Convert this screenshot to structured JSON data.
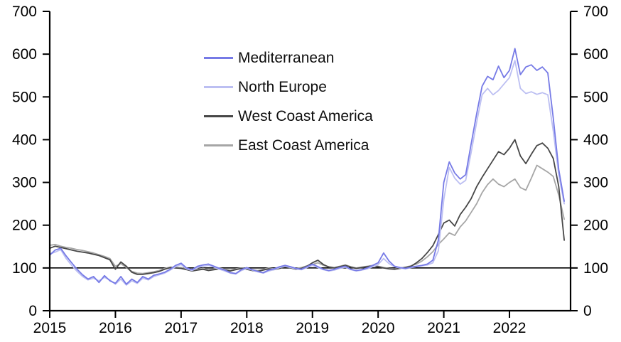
{
  "chart_data": {
    "type": "line",
    "title": "",
    "xlabel": "",
    "ylabel": "",
    "x_axis": {
      "tick_years": [
        2015,
        2016,
        2017,
        2018,
        2019,
        2020,
        2021,
        2022
      ],
      "min": 2015,
      "max": 2022.93
    },
    "y_axis_left": {
      "ticks": [
        0,
        100,
        200,
        300,
        400,
        500,
        600,
        700
      ],
      "min": 0,
      "max": 700
    },
    "y_axis_right": {
      "ticks": [
        0,
        100,
        200,
        300,
        400,
        500,
        600,
        700
      ],
      "min": 0,
      "max": 700
    },
    "reference_line_value": 100,
    "grid": false,
    "legend_position": "upper-left-inside",
    "axis_color": "#000000",
    "x_start_year": 2015,
    "x_step_years": 0.0833333,
    "series": [
      {
        "name": "Mediterranean",
        "color": "#767ae6",
        "values": [
          130,
          142,
          146,
          128,
          112,
          97,
          84,
          74,
          80,
          66,
          82,
          70,
          64,
          80,
          62,
          74,
          66,
          80,
          74,
          83,
          86,
          90,
          97,
          106,
          111,
          100,
          96,
          104,
          107,
          109,
          104,
          99,
          95,
          89,
          87,
          96,
          101,
          96,
          92,
          89,
          95,
          98,
          103,
          106,
          103,
          99,
          97,
          103,
          109,
          103,
          97,
          94,
          97,
          101,
          104,
          97,
          94,
          96,
          100,
          106,
          112,
          135,
          116,
          104,
          101,
          99,
          102,
          104,
          106,
          109,
          118,
          165,
          300,
          348,
          322,
          308,
          318,
          390,
          460,
          525,
          548,
          540,
          572,
          545,
          562,
          613,
          552,
          570,
          575,
          562,
          570,
          556,
          450,
          330,
          256
        ]
      },
      {
        "name": "North Europe",
        "color": "#bcbff2",
        "values": [
          133,
          137,
          143,
          122,
          106,
          92,
          80,
          72,
          76,
          70,
          78,
          72,
          62,
          74,
          60,
          70,
          64,
          76,
          72,
          80,
          84,
          88,
          95,
          103,
          108,
          98,
          94,
          101,
          104,
          106,
          102,
          97,
          93,
          88,
          86,
          94,
          99,
          95,
          91,
          88,
          93,
          96,
          101,
          104,
          101,
          98,
          96,
          101,
          106,
          101,
          96,
          93,
          95,
          99,
          102,
          96,
          93,
          95,
          98,
          103,
          108,
          122,
          110,
          103,
          100,
          98,
          101,
          103,
          105,
          107,
          112,
          140,
          260,
          335,
          310,
          296,
          305,
          370,
          440,
          505,
          520,
          505,
          515,
          530,
          545,
          585,
          520,
          508,
          512,
          506,
          510,
          505,
          420,
          318,
          250
        ]
      },
      {
        "name": "West Coast America",
        "color": "#474747",
        "values": [
          146,
          151,
          148,
          145,
          142,
          139,
          137,
          135,
          132,
          129,
          124,
          119,
          97,
          114,
          104,
          90,
          85,
          85,
          87,
          89,
          92,
          97,
          101,
          100,
          99,
          96,
          93,
          95,
          97,
          94,
          96,
          98,
          95,
          93,
          96,
          99,
          97,
          94,
          92,
          95,
          98,
          96,
          99,
          103,
          100,
          97,
          99,
          104,
          112,
          118,
          108,
          102,
          100,
          103,
          106,
          102,
          99,
          101,
          103,
          105,
          103,
          100,
          98,
          97,
          99,
          101,
          104,
          112,
          122,
          136,
          152,
          178,
          205,
          212,
          198,
          225,
          242,
          262,
          290,
          312,
          332,
          352,
          372,
          365,
          380,
          400,
          362,
          344,
          366,
          386,
          392,
          380,
          356,
          290,
          165
        ]
      },
      {
        "name": "East Coast America",
        "color": "#a6a6a6",
        "values": [
          153,
          155,
          151,
          148,
          146,
          143,
          141,
          138,
          135,
          131,
          127,
          122,
          104,
          110,
          101,
          92,
          88,
          87,
          89,
          91,
          94,
          99,
          102,
          101,
          101,
          98,
          95,
          97,
          99,
          96,
          98,
          100,
          97,
          95,
          98,
          100,
          99,
          96,
          94,
          97,
          100,
          98,
          101,
          104,
          101,
          99,
          101,
          105,
          108,
          112,
          106,
          103,
          101,
          104,
          107,
          103,
          100,
          102,
          104,
          106,
          104,
          101,
          99,
          98,
          100,
          102,
          105,
          109,
          116,
          126,
          138,
          155,
          168,
          182,
          176,
          196,
          210,
          230,
          250,
          276,
          295,
          308,
          296,
          290,
          300,
          308,
          288,
          282,
          310,
          340,
          332,
          324,
          314,
          270,
          214
        ]
      }
    ]
  }
}
